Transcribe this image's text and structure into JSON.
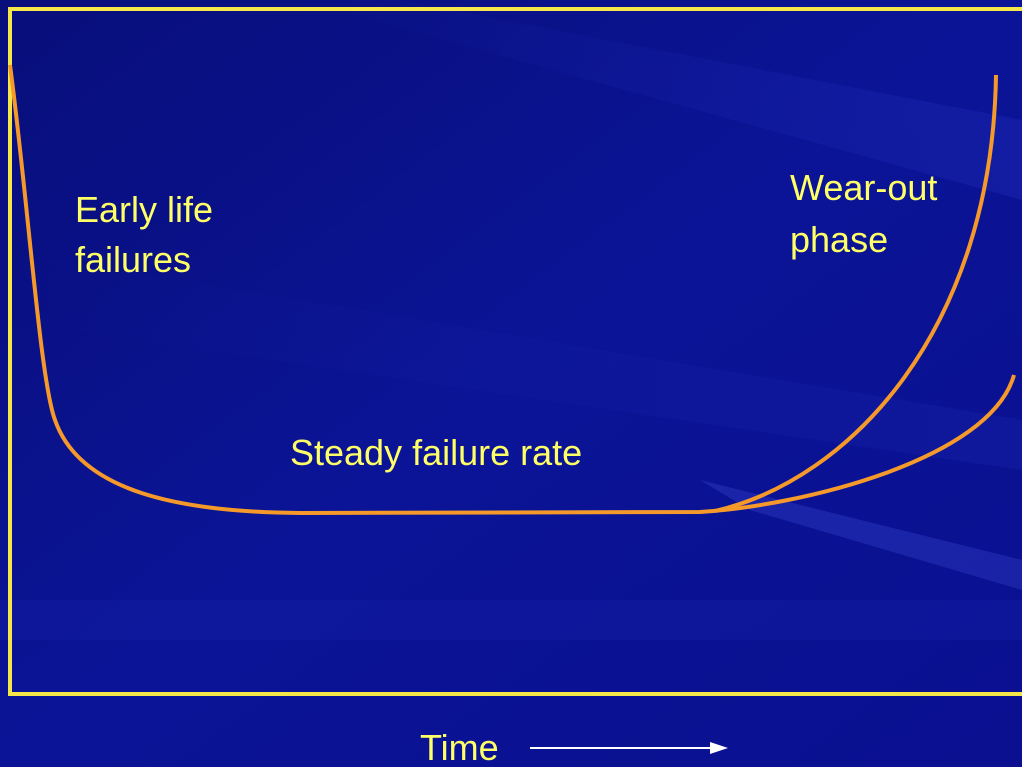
{
  "labels": {
    "early_life": [
      "Early life",
      "failures"
    ],
    "wear_out": [
      "Wear-out",
      "phase"
    ],
    "steady": "Steady failure rate",
    "x_axis": "Time"
  }
}
